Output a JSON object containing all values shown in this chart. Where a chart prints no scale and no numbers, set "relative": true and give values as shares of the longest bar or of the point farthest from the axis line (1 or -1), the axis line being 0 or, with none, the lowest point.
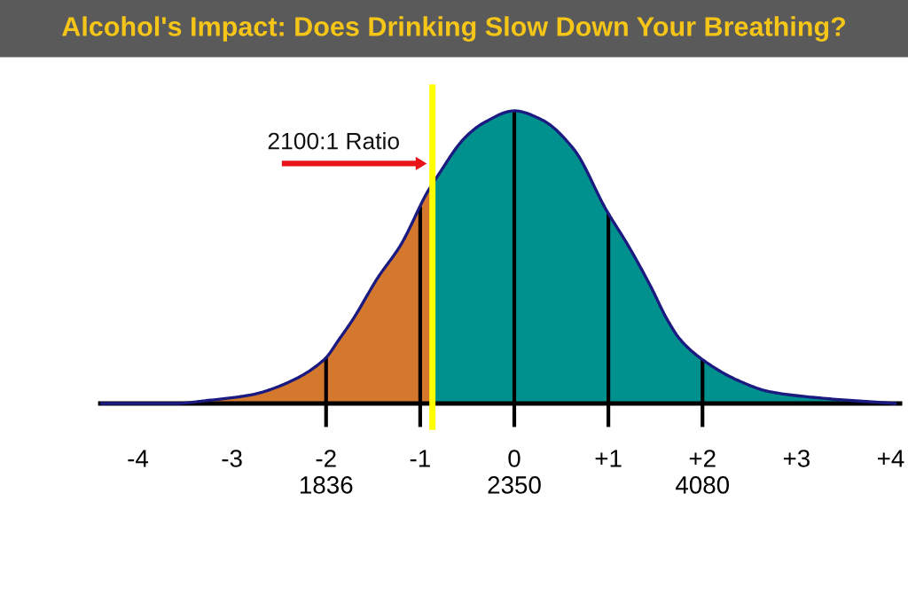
{
  "chart_data": {
    "type": "area",
    "title": "Alcohol's Impact: Does Drinking Slow Down Your Breathing?",
    "relative": true,
    "xlim": [
      -4.4,
      4.1
    ],
    "xticks": [
      -4,
      -3,
      {
        "value": -2,
        "label": "-2\n1836"
      },
      -1,
      {
        "value": 0,
        "label": "0\n2350"
      },
      {
        "value": 1,
        "label": "+1"
      },
      {
        "value": 2,
        "label": "+2\n4080"
      },
      {
        "value": 3,
        "label": "+3"
      },
      {
        "value": 4,
        "label": "+4"
      }
    ],
    "series": [
      {
        "color": "#d4782e",
        "x": [
          -4.4,
          -3.6,
          -3.27,
          -2.79,
          -2.49,
          -2.02,
          -1.86,
          -1.71,
          -1.45,
          -1.21,
          -0.91,
          -0.87
        ],
        "values": [
          0,
          0,
          0.01,
          0.03,
          0.06,
          0.15,
          0.22,
          0.29,
          0.43,
          0.54,
          0.73,
          0.75
        ]
      },
      {
        "color": "#00918f",
        "x": [
          -0.87,
          -0.83,
          -0.52,
          -0.32,
          0,
          0.29,
          0.63,
          0.98,
          1.21,
          1.45,
          1.62,
          1.76,
          2.0,
          2.37,
          2.72,
          3.21,
          4.05
        ],
        "values": [
          0.75,
          0.77,
          0.91,
          0.96,
          1.0,
          0.97,
          0.87,
          0.66,
          0.54,
          0.4,
          0.29,
          0.22,
          0.15,
          0.08,
          0.04,
          0.02,
          0
        ]
      },
      {
        "type": "line",
        "color": "#1a1a80",
        "x": [
          -4.4,
          -3.6,
          -3.27,
          -2.79,
          -2.49,
          -2.02,
          -1.86,
          -1.71,
          -1.45,
          -1.21,
          -0.91,
          -0.87,
          -0.83,
          -0.52,
          -0.32,
          0,
          0.29,
          0.63,
          0.98,
          1.21,
          1.45,
          1.62,
          1.76,
          2.0,
          2.37,
          2.72,
          3.21,
          4.05
        ],
        "values": [
          0,
          0,
          0.01,
          0.03,
          0.06,
          0.15,
          0.22,
          0.29,
          0.43,
          0.54,
          0.73,
          0.75,
          0.77,
          0.91,
          0.96,
          1.0,
          0.97,
          0.87,
          0.66,
          0.54,
          0.4,
          0.29,
          0.22,
          0.15,
          0.08,
          0.04,
          0.02,
          0
        ]
      }
    ],
    "ref_lines": [
      {
        "axis": "x",
        "value": -2,
        "color": "#000000"
      },
      {
        "axis": "x",
        "value": -1,
        "color": "#000000"
      },
      {
        "axis": "x",
        "value": 0,
        "color": "#000000"
      },
      {
        "axis": "x",
        "value": 1,
        "color": "#000000"
      },
      {
        "axis": "x",
        "value": 2,
        "color": "#000000"
      },
      {
        "axis": "x",
        "value": -0.87,
        "color": "#ffff00"
      }
    ],
    "annotations": [
      {
        "text": "2100:1 Ratio",
        "x": -0.87,
        "y": 0.82
      }
    ]
  }
}
